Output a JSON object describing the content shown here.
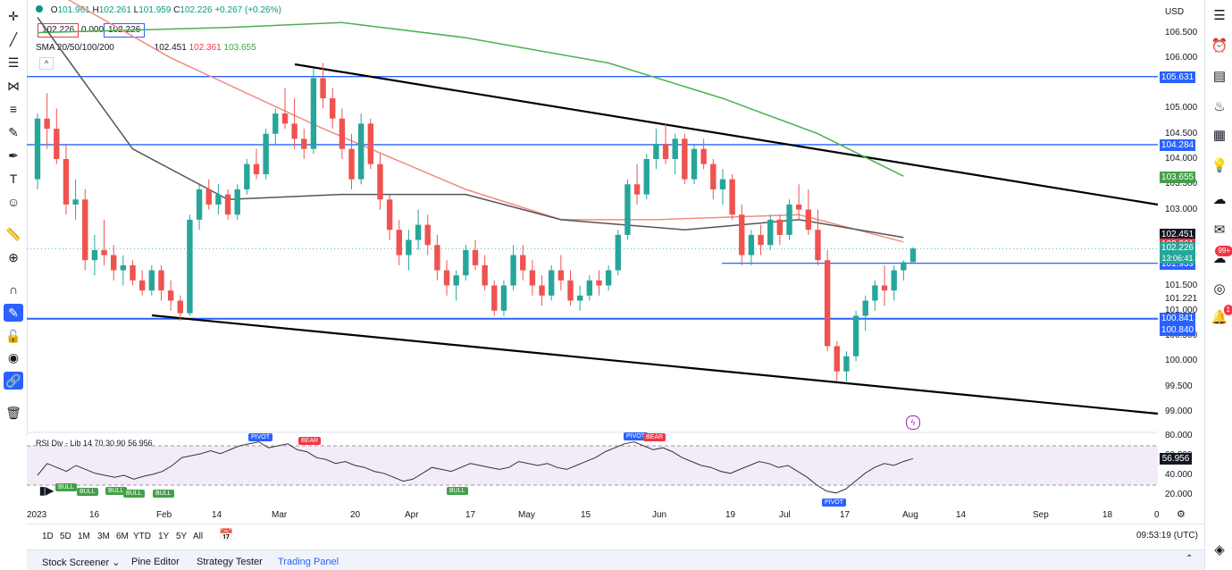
{
  "header": {
    "ohlc": {
      "o_label": "O",
      "o": "101.961",
      "h_label": "H",
      "h": "102.261",
      "l_label": "L",
      "l": "101.959",
      "c_label": "C",
      "c": "102.226",
      "change": "+0.267 (+0.26%)"
    },
    "bid": "102.226",
    "spread": "0.000",
    "ask": "102.226",
    "sma_label": "SMA 20/50/100/200",
    "sma_values": [
      "102.451",
      "102.361",
      "103.655"
    ],
    "currency": "USD"
  },
  "price_axis": {
    "ticks": [
      {
        "v": 106.5,
        "t": "106.500"
      },
      {
        "v": 106.0,
        "t": "106.000"
      },
      {
        "v": 105.0,
        "t": "105.000"
      },
      {
        "v": 104.5,
        "t": "104.500"
      },
      {
        "v": 104.0,
        "t": "104.000"
      },
      {
        "v": 103.5,
        "t": "103.500"
      },
      {
        "v": 103.0,
        "t": "103.000"
      },
      {
        "v": 101.5,
        "t": "101.500"
      },
      {
        "v": 101.221,
        "t": "101.221"
      },
      {
        "v": 101.0,
        "t": "101.000"
      },
      {
        "v": 100.5,
        "t": "100.500"
      },
      {
        "v": 100.0,
        "t": "100.000"
      },
      {
        "v": 99.5,
        "t": "99.500"
      },
      {
        "v": 99.0,
        "t": "99.000"
      }
    ],
    "labels": [
      {
        "v": 105.631,
        "t": "105.631",
        "color": "#2962ff"
      },
      {
        "v": 104.284,
        "t": "104.284",
        "color": "#2962ff"
      },
      {
        "v": 103.655,
        "t": "103.655",
        "color": "#43a047"
      },
      {
        "v": 102.451,
        "t": "102.451",
        "color": "#131722"
      },
      {
        "v": 102.361,
        "t": "102.361",
        "color": "#f23645"
      },
      {
        "v": 102.226,
        "t": "102.226",
        "color": "#26a69a"
      },
      {
        "v": 101.939,
        "t": "101.939",
        "color": "#2962ff"
      },
      {
        "v": 100.841,
        "t": "100.841",
        "color": "#2962ff"
      },
      {
        "v": 100.84,
        "t": "100.840",
        "color": "#2962ff"
      }
    ],
    "countdown": "13:06:41"
  },
  "time_axis": [
    "2023",
    "16",
    "Feb",
    "14",
    "Mar",
    "20",
    "Apr",
    "17",
    "May",
    "15",
    "Jun",
    "19",
    "Jul",
    "17",
    "Aug",
    "14",
    "Sep",
    "18",
    "0"
  ],
  "rsi": {
    "label": "RSI Div - Lib 14 70 30 90",
    "value": "56.956",
    "ticks": [
      "80.000",
      "60.000",
      "40.000",
      "20.000"
    ],
    "pivot_label": "PIVOT",
    "bear_label": "BEAR",
    "bull_label": "BULL"
  },
  "periods": [
    "1D",
    "5D",
    "1M",
    "3M",
    "6M",
    "YTD",
    "1Y",
    "5Y",
    "All"
  ],
  "clock": "09:53:19 (UTC)",
  "footer_tabs": [
    "Stock Screener",
    "Pine Editor",
    "Strategy Tester",
    "Trading Panel"
  ],
  "right_badges": [
    "99+",
    "1"
  ],
  "colors": {
    "up": "#26a69a",
    "down": "#ef5350",
    "hline": "#2962ff",
    "sma_gray": "#555555",
    "sma_red": "#f28b82",
    "sma_green": "#4caf50"
  },
  "chart_data": {
    "type": "candlestick",
    "xlabel": "",
    "ylabel": "",
    "ylim": [
      98.75,
      106.9
    ],
    "hlines": [
      105.631,
      104.284,
      101.939,
      100.841
    ],
    "trend_lines": [
      {
        "from": [
          "2023-03-06",
          105.9
        ],
        "to": [
          "2023-09-28",
          103.1
        ]
      },
      {
        "from": [
          "2023-01-30",
          100.84
        ],
        "to": [
          "2023-09-28",
          98.9
        ]
      }
    ],
    "ohlc": [
      [
        103.6,
        104.9,
        103.4,
        104.8
      ],
      [
        104.8,
        105.3,
        104.2,
        104.6
      ],
      [
        104.6,
        105.0,
        103.9,
        104.0
      ],
      [
        104.0,
        104.3,
        102.9,
        103.1
      ],
      [
        103.1,
        103.6,
        102.8,
        103.2
      ],
      [
        103.2,
        103.4,
        101.8,
        102.0
      ],
      [
        102.0,
        102.5,
        101.7,
        102.2
      ],
      [
        102.2,
        102.8,
        101.9,
        102.1
      ],
      [
        102.1,
        102.3,
        101.6,
        101.8
      ],
      [
        101.8,
        102.1,
        101.5,
        101.9
      ],
      [
        101.9,
        102.0,
        101.5,
        101.6
      ],
      [
        101.6,
        101.8,
        101.3,
        101.4
      ],
      [
        101.4,
        101.9,
        101.3,
        101.8
      ],
      [
        101.8,
        101.9,
        101.2,
        101.4
      ],
      [
        101.4,
        101.6,
        101.0,
        101.2
      ],
      [
        101.2,
        101.3,
        100.8,
        100.95
      ],
      [
        100.95,
        102.9,
        100.9,
        102.8
      ],
      [
        102.8,
        103.5,
        102.6,
        103.4
      ],
      [
        103.4,
        103.6,
        103.0,
        103.1
      ],
      [
        103.1,
        103.5,
        102.9,
        103.3
      ],
      [
        103.3,
        103.4,
        102.8,
        102.9
      ],
      [
        102.9,
        103.5,
        102.8,
        103.4
      ],
      [
        103.4,
        104.0,
        103.3,
        103.9
      ],
      [
        103.9,
        104.2,
        103.6,
        103.7
      ],
      [
        103.7,
        104.6,
        103.6,
        104.5
      ],
      [
        104.5,
        105.0,
        104.3,
        104.9
      ],
      [
        104.9,
        105.4,
        104.6,
        104.7
      ],
      [
        104.7,
        105.2,
        104.2,
        104.4
      ],
      [
        104.4,
        104.6,
        104.0,
        104.2
      ],
      [
        104.2,
        105.8,
        104.1,
        105.6
      ],
      [
        105.6,
        105.9,
        105.0,
        105.2
      ],
      [
        105.2,
        105.4,
        104.6,
        104.8
      ],
      [
        104.8,
        105.0,
        104.0,
        104.2
      ],
      [
        104.2,
        104.5,
        103.4,
        103.6
      ],
      [
        103.6,
        104.9,
        103.5,
        104.7
      ],
      [
        104.7,
        104.8,
        103.8,
        103.9
      ],
      [
        103.9,
        104.1,
        103.0,
        103.2
      ],
      [
        103.2,
        103.3,
        102.4,
        102.6
      ],
      [
        102.6,
        102.8,
        101.9,
        102.1
      ],
      [
        102.1,
        102.6,
        101.8,
        102.4
      ],
      [
        102.4,
        103.0,
        102.2,
        102.7
      ],
      [
        102.7,
        102.9,
        102.1,
        102.3
      ],
      [
        102.3,
        102.5,
        101.6,
        101.8
      ],
      [
        101.8,
        102.0,
        101.3,
        101.5
      ],
      [
        101.5,
        101.8,
        101.2,
        101.7
      ],
      [
        101.7,
        102.3,
        101.6,
        102.2
      ],
      [
        102.2,
        102.4,
        101.8,
        101.9
      ],
      [
        101.9,
        102.1,
        101.4,
        101.5
      ],
      [
        101.5,
        101.6,
        100.9,
        101.0
      ],
      [
        101.0,
        101.6,
        100.9,
        101.5
      ],
      [
        101.5,
        102.3,
        101.4,
        102.1
      ],
      [
        102.1,
        102.3,
        101.6,
        101.8
      ],
      [
        101.8,
        102.0,
        101.3,
        101.5
      ],
      [
        101.5,
        101.7,
        101.1,
        101.3
      ],
      [
        101.3,
        101.9,
        101.2,
        101.8
      ],
      [
        101.8,
        102.1,
        101.4,
        101.6
      ],
      [
        101.6,
        101.8,
        101.1,
        101.2
      ],
      [
        101.2,
        101.5,
        101.0,
        101.3
      ],
      [
        101.3,
        101.7,
        101.2,
        101.6
      ],
      [
        101.6,
        101.8,
        101.3,
        101.5
      ],
      [
        101.5,
        101.9,
        101.4,
        101.8
      ],
      [
        101.8,
        102.6,
        101.7,
        102.5
      ],
      [
        102.5,
        103.6,
        102.4,
        103.5
      ],
      [
        103.5,
        103.9,
        103.1,
        103.3
      ],
      [
        103.3,
        104.1,
        103.2,
        104.0
      ],
      [
        104.0,
        104.6,
        103.8,
        104.3
      ],
      [
        104.3,
        104.7,
        103.9,
        104.0
      ],
      [
        104.0,
        104.5,
        103.7,
        104.4
      ],
      [
        104.4,
        104.5,
        103.5,
        103.6
      ],
      [
        103.6,
        104.3,
        103.5,
        104.2
      ],
      [
        104.2,
        104.4,
        103.8,
        103.9
      ],
      [
        103.9,
        104.0,
        103.2,
        103.4
      ],
      [
        103.4,
        103.8,
        103.1,
        103.6
      ],
      [
        103.6,
        103.7,
        102.8,
        102.9
      ],
      [
        102.9,
        103.1,
        101.9,
        102.1
      ],
      [
        102.1,
        102.6,
        101.9,
        102.5
      ],
      [
        102.5,
        102.7,
        102.1,
        102.3
      ],
      [
        102.3,
        102.9,
        102.2,
        102.8
      ],
      [
        102.8,
        102.9,
        102.3,
        102.5
      ],
      [
        102.5,
        103.2,
        102.4,
        103.1
      ],
      [
        103.1,
        103.5,
        102.8,
        103.0
      ],
      [
        103.0,
        103.4,
        102.5,
        102.6
      ],
      [
        102.6,
        103.0,
        101.9,
        102.0
      ],
      [
        102.0,
        102.2,
        100.2,
        100.3
      ],
      [
        100.3,
        100.4,
        99.6,
        99.8
      ],
      [
        99.8,
        100.2,
        99.6,
        100.1
      ],
      [
        100.1,
        101.0,
        100.0,
        100.9
      ],
      [
        100.9,
        101.3,
        100.6,
        101.2
      ],
      [
        101.2,
        101.6,
        101.0,
        101.5
      ],
      [
        101.5,
        101.9,
        101.1,
        101.4
      ],
      [
        101.4,
        101.9,
        101.2,
        101.8
      ],
      [
        101.8,
        102.0,
        101.6,
        101.96
      ],
      [
        101.96,
        102.26,
        101.96,
        102.23
      ]
    ],
    "sma_gray": [
      [
        0,
        106.8
      ],
      [
        10,
        104.2
      ],
      [
        20,
        103.2
      ],
      [
        32,
        103.3
      ],
      [
        45,
        103.3
      ],
      [
        55,
        102.8
      ],
      [
        68,
        102.6
      ],
      [
        80,
        102.8
      ],
      [
        91,
        102.45
      ]
    ],
    "sma_red": [
      [
        0,
        107.5
      ],
      [
        14,
        106.0
      ],
      [
        30,
        104.6
      ],
      [
        45,
        103.4
      ],
      [
        55,
        102.8
      ],
      [
        65,
        102.8
      ],
      [
        80,
        102.9
      ],
      [
        91,
        102.36
      ]
    ],
    "sma_green": [
      [
        0,
        106.5
      ],
      [
        20,
        106.6
      ],
      [
        32,
        106.7
      ],
      [
        45,
        106.4
      ],
      [
        60,
        105.9
      ],
      [
        72,
        105.2
      ],
      [
        82,
        104.5
      ],
      [
        91,
        103.66
      ]
    ],
    "rsi_values": [
      40,
      52,
      48,
      44,
      50,
      46,
      42,
      40,
      38,
      40,
      36,
      39,
      41,
      44,
      50,
      58,
      60,
      62,
      65,
      62,
      66,
      70,
      72,
      74,
      68,
      70,
      72,
      66,
      64,
      58,
      56,
      52,
      54,
      50,
      48,
      44,
      42,
      38,
      34,
      36,
      42,
      48,
      46,
      44,
      48,
      52,
      50,
      48,
      46,
      48,
      54,
      52,
      50,
      52,
      48,
      46,
      50,
      54,
      58,
      64,
      68,
      72,
      74,
      70,
      66,
      68,
      64,
      58,
      54,
      50,
      48,
      44,
      42,
      46,
      50,
      54,
      52,
      48,
      50,
      44,
      38,
      30,
      24,
      22,
      26,
      34,
      42,
      48,
      52,
      50,
      54,
      56.956
    ],
    "rsi_range": [
      0,
      100
    ]
  }
}
